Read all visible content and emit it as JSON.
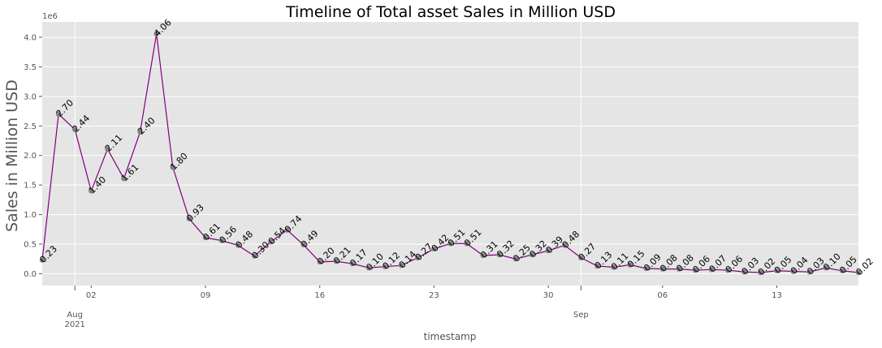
{
  "chart_data": {
    "type": "line",
    "title": "Timeline of Total asset Sales in Million USD",
    "xlabel": "timestamp",
    "ylabel": "Sales in Million USD",
    "y_offset_label": "1e6",
    "ylim": [
      -200000,
      4260000
    ],
    "y_ticks": [
      {
        "value": 0,
        "label": "0.0"
      },
      {
        "value": 500000,
        "label": "0.5"
      },
      {
        "value": 1000000,
        "label": "1.0"
      },
      {
        "value": 1500000,
        "label": "1.5"
      },
      {
        "value": 2000000,
        "label": "2.0"
      },
      {
        "value": 2500000,
        "label": "2.5"
      },
      {
        "value": 3000000,
        "label": "3.0"
      },
      {
        "value": 3500000,
        "label": "3.5"
      },
      {
        "value": 4000000,
        "label": "4.0"
      }
    ],
    "xlim": [
      "2021-07-30",
      "2021-09-18"
    ],
    "x_minor_ticks": [
      {
        "date": "2021-08-02",
        "label": "02"
      },
      {
        "date": "2021-08-09",
        "label": "09"
      },
      {
        "date": "2021-08-16",
        "label": "16"
      },
      {
        "date": "2021-08-23",
        "label": "23"
      },
      {
        "date": "2021-08-30",
        "label": "30"
      },
      {
        "date": "2021-09-06",
        "label": "06"
      },
      {
        "date": "2021-09-13",
        "label": "13"
      }
    ],
    "x_major_ticks": [
      {
        "date": "2021-08-01",
        "label": "Aug",
        "sublabel": "2021"
      },
      {
        "date": "2021-09-01",
        "label": "Sep",
        "sublabel": ""
      }
    ],
    "grid": true,
    "line_color": "#800080",
    "marker_color": "#808080",
    "x": [
      "2021-07-30",
      "2021-07-31",
      "2021-08-01",
      "2021-08-02",
      "2021-08-03",
      "2021-08-04",
      "2021-08-05",
      "2021-08-06",
      "2021-08-07",
      "2021-08-08",
      "2021-08-09",
      "2021-08-10",
      "2021-08-11",
      "2021-08-12",
      "2021-08-13",
      "2021-08-14",
      "2021-08-15",
      "2021-08-16",
      "2021-08-17",
      "2021-08-18",
      "2021-08-19",
      "2021-08-20",
      "2021-08-21",
      "2021-08-22",
      "2021-08-23",
      "2021-08-24",
      "2021-08-25",
      "2021-08-26",
      "2021-08-27",
      "2021-08-28",
      "2021-08-29",
      "2021-08-30",
      "2021-08-31",
      "2021-09-01",
      "2021-09-02",
      "2021-09-03",
      "2021-09-04",
      "2021-09-05",
      "2021-09-06",
      "2021-09-07",
      "2021-09-08",
      "2021-09-09",
      "2021-09-10",
      "2021-09-11",
      "2021-09-12",
      "2021-09-13",
      "2021-09-14",
      "2021-09-15",
      "2021-09-16",
      "2021-09-17",
      "2021-09-18"
    ],
    "values": [
      230000,
      2700000,
      2440000,
      1400000,
      2110000,
      1610000,
      2400000,
      4060000,
      1800000,
      930000,
      610000,
      560000,
      480000,
      300000,
      540000,
      740000,
      490000,
      200000,
      210000,
      170000,
      100000,
      120000,
      140000,
      270000,
      420000,
      510000,
      510000,
      310000,
      320000,
      250000,
      320000,
      390000,
      480000,
      270000,
      130000,
      110000,
      150000,
      90000,
      80000,
      80000,
      60000,
      70000,
      60000,
      30000,
      20000,
      50000,
      40000,
      30000,
      100000,
      50000,
      20000
    ],
    "data_labels": [
      "0.23",
      "2.70",
      "2.44",
      "1.40",
      "2.11",
      "1.61",
      "2.40",
      "4.06",
      "1.80",
      "0.93",
      "0.61",
      "0.56",
      "0.48",
      "0.30",
      "0.54",
      "0.74",
      "0.49",
      "0.20",
      "0.21",
      "0.17",
      "0.10",
      "0.12",
      "0.14",
      "0.27",
      "0.42",
      "0.51",
      "0.51",
      "0.31",
      "0.32",
      "0.25",
      "0.32",
      "0.39",
      "0.48",
      "0.27",
      "0.13",
      "0.11",
      "0.15",
      "0.09",
      "0.08",
      "0.08",
      "0.06",
      "0.07",
      "0.06",
      "0.03",
      "0.02",
      "0.05",
      "0.04",
      "0.03",
      "0.10",
      "0.05",
      "0.02"
    ]
  }
}
